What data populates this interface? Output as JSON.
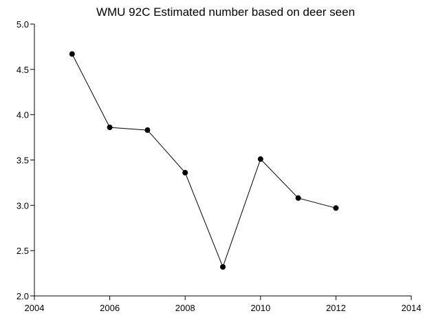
{
  "chart_data": {
    "type": "line",
    "title": "WMU 92C Estimated number based on deer seen",
    "xlabel": "",
    "ylabel": "",
    "xlim": [
      2004,
      2014
    ],
    "ylim": [
      2.0,
      5.0
    ],
    "x_ticks": [
      "2004",
      "2006",
      "2008",
      "2010",
      "2012",
      "2014"
    ],
    "y_ticks": [
      "2.0",
      "2.5",
      "3.0",
      "3.5",
      "4.0",
      "4.5",
      "5.0"
    ],
    "grid": false,
    "legend": "none",
    "series": [
      {
        "color": "#000000",
        "marker": "circle",
        "x": [
          2005,
          2006,
          2007,
          2008,
          2009,
          2010,
          2011,
          2012
        ],
        "y": [
          4.67,
          3.86,
          3.83,
          3.36,
          2.32,
          3.51,
          3.08,
          2.97
        ]
      }
    ]
  }
}
